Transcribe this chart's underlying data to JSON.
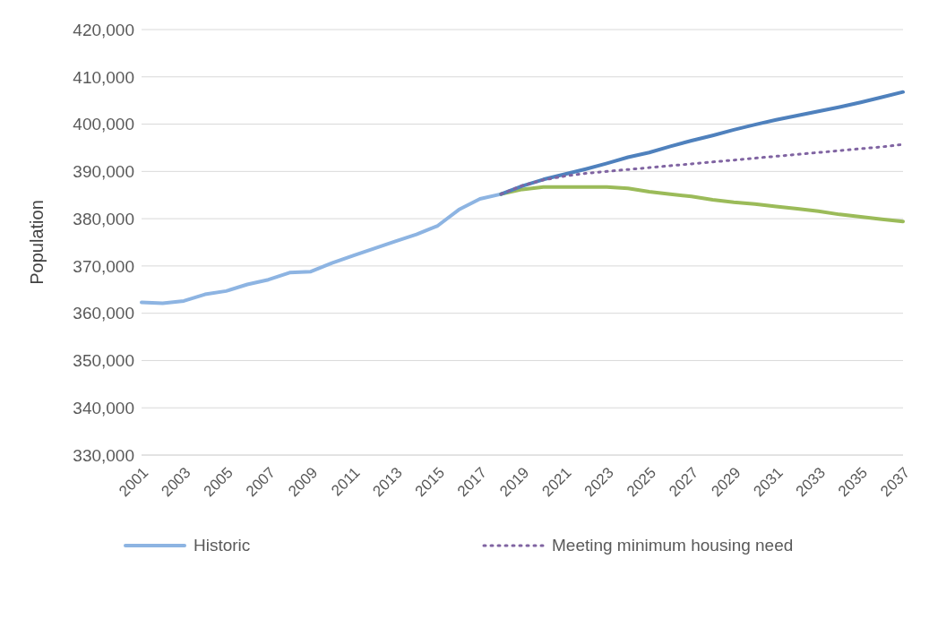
{
  "chart_data": {
    "type": "line",
    "ylabel": "Population",
    "categories": [
      "2001",
      null,
      "2003",
      null,
      "2005",
      null,
      "2007",
      null,
      "2009",
      null,
      "2011",
      null,
      "2013",
      null,
      "2015",
      null,
      "2017",
      null,
      "2019",
      null,
      "2021",
      null,
      "2023",
      null,
      "2025",
      null,
      "2027",
      null,
      "2029",
      null,
      "2031",
      null,
      "2033",
      null,
      "2035",
      null,
      "2037"
    ],
    "series": [
      {
        "name": "Historic",
        "color": "#8db4e2",
        "values": [
          362300,
          362100,
          362600,
          364000,
          364700,
          366100,
          367100,
          368600,
          368800,
          370600,
          372200,
          373700,
          375200,
          376700,
          378500,
          381900,
          384200,
          385200,
          null,
          null,
          null,
          null,
          null,
          null,
          null,
          null,
          null,
          null,
          null,
          null,
          null,
          null,
          null,
          null,
          null,
          null,
          null
        ]
      },
      {
        "color": "#9bbb59",
        "values": [
          null,
          null,
          null,
          null,
          null,
          null,
          null,
          null,
          null,
          null,
          null,
          null,
          null,
          null,
          null,
          null,
          null,
          385200,
          386200,
          386700,
          386700,
          386700,
          386700,
          386400,
          385700,
          385200,
          384700,
          384000,
          383500,
          383100,
          382600,
          382100,
          381600,
          380900,
          380400,
          379900,
          379400
        ]
      },
      {
        "color": "#4f81bd",
        "values": [
          null,
          null,
          null,
          null,
          null,
          null,
          null,
          null,
          null,
          null,
          null,
          null,
          null,
          null,
          null,
          null,
          null,
          385200,
          386900,
          388300,
          389400,
          390500,
          391700,
          393000,
          394000,
          395300,
          396500,
          397600,
          398800,
          399900,
          400900,
          401800,
          402700,
          403600,
          404600,
          405700,
          406800
        ]
      },
      {
        "name": "Meeting minimum housing need",
        "color": "#8064a2",
        "line_style": "dotted",
        "values": [
          null,
          null,
          null,
          null,
          null,
          null,
          null,
          null,
          null,
          null,
          null,
          null,
          null,
          null,
          null,
          null,
          null,
          385200,
          387000,
          388200,
          389000,
          389600,
          390000,
          390400,
          390800,
          391200,
          391600,
          392000,
          392400,
          392800,
          393200,
          393600,
          394000,
          394400,
          394800,
          395200,
          395700
        ]
      }
    ],
    "ylim": [
      330000,
      420000
    ],
    "yticks": [
      {
        "value": 330000,
        "label": "330,000"
      },
      {
        "value": 340000,
        "label": "340,000"
      },
      {
        "value": 350000,
        "label": "350,000"
      },
      {
        "value": 360000,
        "label": "360,000"
      },
      {
        "value": 370000,
        "label": "370,000"
      },
      {
        "value": 380000,
        "label": "380,000"
      },
      {
        "value": 390000,
        "label": "390,000"
      },
      {
        "value": 400000,
        "label": "400,000"
      },
      {
        "value": 410000,
        "label": "410,000"
      },
      {
        "value": 420000,
        "label": "420,000"
      }
    ],
    "grid": "y",
    "legend": "bottom",
    "marker": "none"
  }
}
